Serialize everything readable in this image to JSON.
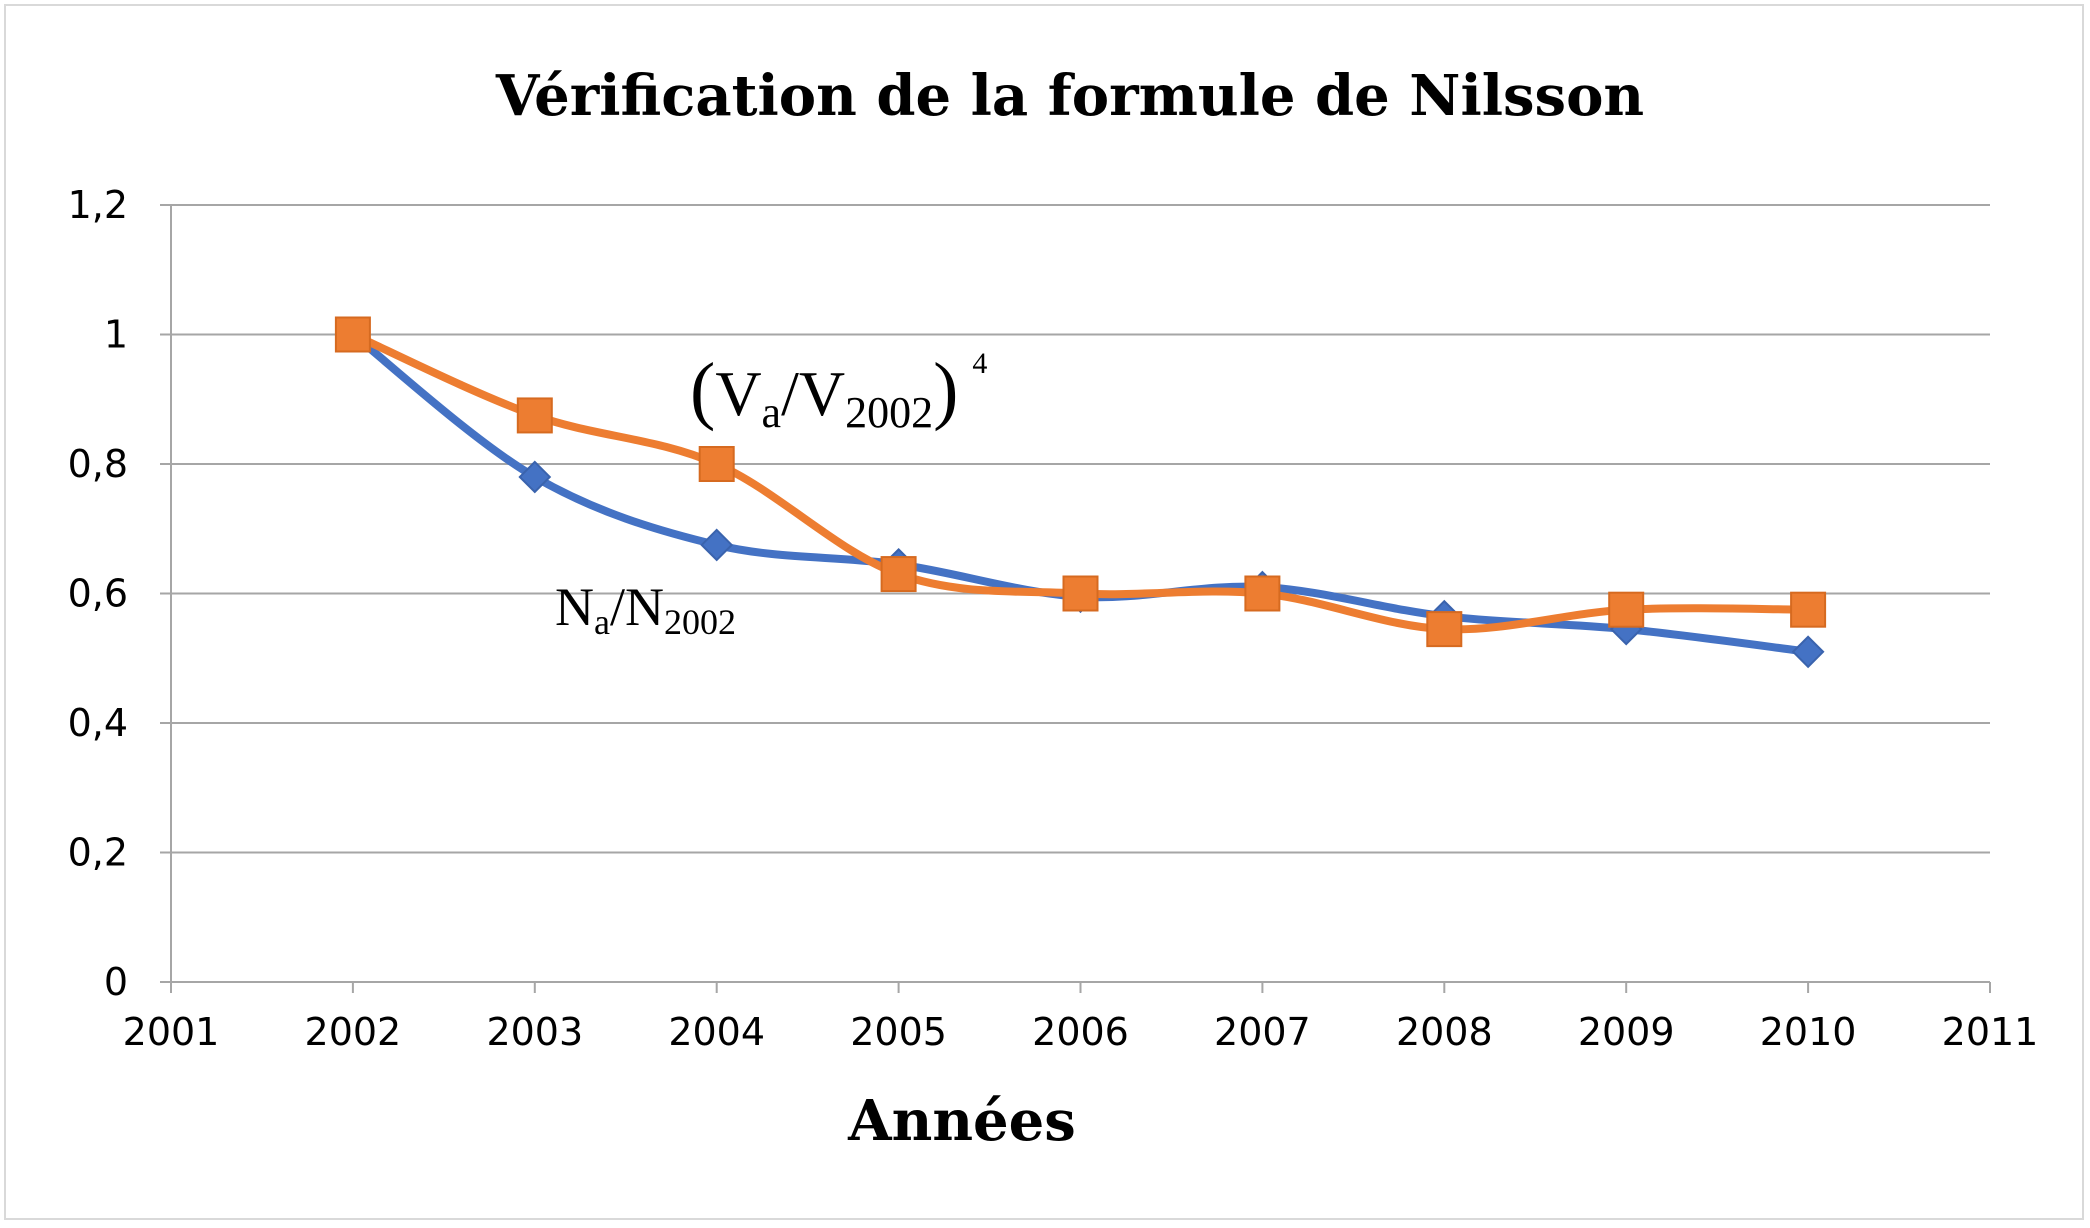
{
  "chart_data": {
    "type": "line",
    "title": "Vérification de la formule de Nilsson",
    "xlabel": "Années",
    "ylabel": "",
    "xlim": [
      2001,
      2011
    ],
    "ylim": [
      0,
      1.2
    ],
    "x_ticks": [
      "2001",
      "2002",
      "2003",
      "2004",
      "2005",
      "2006",
      "2007",
      "2008",
      "2009",
      "2010",
      "2011"
    ],
    "y_ticks": [
      "0",
      "0,2",
      "0,4",
      "0,6",
      "0,8",
      "1",
      "1,2"
    ],
    "grid": true,
    "smooth": true,
    "series": [
      {
        "color": "#4472c4",
        "marker": "diamond",
        "x": [
          2002,
          2003,
          2004,
          2005,
          2006,
          2007,
          2008,
          2009,
          2010
        ],
        "values": [
          1.0,
          0.78,
          0.675,
          0.645,
          0.595,
          0.61,
          0.565,
          0.545,
          0.51
        ]
      },
      {
        "color": "#ed7d31",
        "marker": "square",
        "x": [
          2002,
          2003,
          2004,
          2005,
          2006,
          2007,
          2008,
          2009,
          2010
        ],
        "values": [
          1.0,
          0.875,
          0.8,
          0.63,
          0.6,
          0.6,
          0.545,
          0.575,
          0.575
        ]
      }
    ],
    "annotations": {
      "orange": {
        "open": "(",
        "main1": "V",
        "sub1": "a",
        "slash": "/V",
        "sub2": "2002",
        "close": ")",
        "sup": "4"
      },
      "blue": {
        "main1": "N",
        "sub1": "a",
        "main2": "/N",
        "sub2": "2002"
      }
    }
  }
}
